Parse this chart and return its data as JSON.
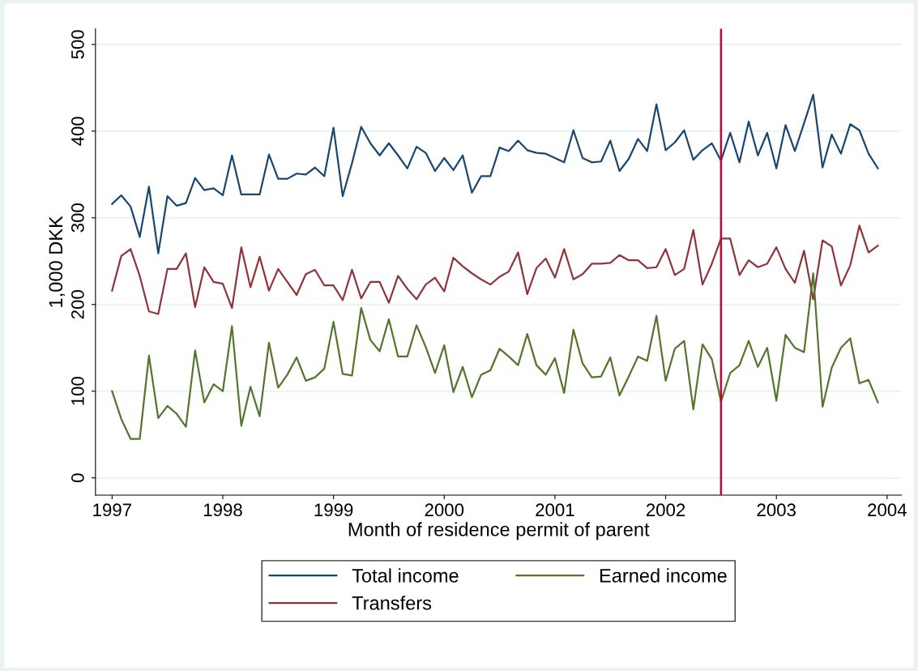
{
  "chart_data": {
    "type": "line",
    "xlabel": "Month of residence permit of parent",
    "ylabel": "1,000 DKK",
    "x": [
      1997.0,
      1997.083,
      1997.167,
      1997.25,
      1997.333,
      1997.417,
      1997.5,
      1997.583,
      1997.667,
      1997.75,
      1997.833,
      1997.917,
      1998.0,
      1998.083,
      1998.167,
      1998.25,
      1998.333,
      1998.417,
      1998.5,
      1998.583,
      1998.667,
      1998.75,
      1998.833,
      1998.917,
      1999.0,
      1999.083,
      1999.167,
      1999.25,
      1999.333,
      1999.417,
      1999.5,
      1999.583,
      1999.667,
      1999.75,
      1999.833,
      1999.917,
      2000.0,
      2000.083,
      2000.167,
      2000.25,
      2000.333,
      2000.417,
      2000.5,
      2000.583,
      2000.667,
      2000.75,
      2000.833,
      2000.917,
      2001.0,
      2001.083,
      2001.167,
      2001.25,
      2001.333,
      2001.417,
      2001.5,
      2001.583,
      2001.667,
      2001.75,
      2001.833,
      2001.917,
      2002.0,
      2002.083,
      2002.167,
      2002.25,
      2002.333,
      2002.417,
      2002.5,
      2002.583,
      2002.667,
      2002.75,
      2002.833,
      2002.917,
      2003.0,
      2003.083,
      2003.167,
      2003.25,
      2003.333,
      2003.417,
      2003.5,
      2003.583,
      2003.667,
      2003.75,
      2003.833,
      2003.917
    ],
    "series": [
      {
        "name": "Total income",
        "color": "#1a476f",
        "values": [
          316,
          326,
          313,
          278,
          336,
          259,
          325,
          314,
          317,
          346,
          332,
          334,
          326,
          372,
          327,
          327,
          327,
          373,
          345,
          345,
          351,
          350,
          358,
          348,
          404,
          325,
          363,
          405,
          386,
          372,
          386,
          372,
          357,
          382,
          375,
          354,
          369,
          355,
          372,
          329,
          348,
          348,
          381,
          377,
          389,
          378,
          375,
          374,
          369,
          364,
          401,
          369,
          364,
          365,
          389,
          354,
          368,
          391,
          377,
          431,
          378,
          387,
          401,
          367,
          378,
          386,
          366,
          398,
          364,
          411,
          372,
          398,
          357,
          407,
          377,
          409,
          442,
          358,
          396,
          374,
          408,
          401,
          374,
          357
        ]
      },
      {
        "name": "Transfers",
        "color": "#90353b",
        "values": [
          216,
          256,
          264,
          233,
          192,
          189,
          241,
          241,
          259,
          197,
          243,
          226,
          224,
          196,
          266,
          220,
          255,
          216,
          241,
          226,
          211,
          235,
          240,
          222,
          222,
          205,
          240,
          207,
          226,
          226,
          202,
          233,
          218,
          206,
          223,
          231,
          215,
          254,
          244,
          236,
          229,
          223,
          232,
          238,
          260,
          212,
          242,
          253,
          231,
          264,
          229,
          235,
          247,
          247,
          248,
          257,
          251,
          251,
          242,
          243,
          264,
          234,
          241,
          286,
          223,
          247,
          276,
          276,
          234,
          251,
          243,
          247,
          266,
          241,
          225,
          262,
          206,
          274,
          267,
          222,
          245,
          291,
          260,
          268
        ]
      },
      {
        "name": "Earned income",
        "color": "#55752f",
        "values": [
          100,
          68,
          45,
          45,
          141,
          69,
          83,
          74,
          59,
          147,
          87,
          108,
          100,
          175,
          60,
          105,
          71,
          156,
          104,
          119,
          139,
          112,
          116,
          126,
          180,
          120,
          118,
          196,
          159,
          146,
          183,
          140,
          140,
          176,
          151,
          121,
          153,
          99,
          128,
          93,
          119,
          124,
          149,
          140,
          130,
          166,
          130,
          119,
          138,
          98,
          171,
          132,
          116,
          117,
          139,
          95,
          117,
          140,
          135,
          187,
          112,
          149,
          158,
          79,
          154,
          137,
          88,
          121,
          130,
          158,
          128,
          150,
          89,
          165,
          150,
          145,
          236,
          82,
          127,
          150,
          161,
          109,
          113,
          87
        ]
      }
    ],
    "xlim": [
      1996.85,
      2004.13
    ],
    "xticks": [
      1997,
      1998,
      1999,
      2000,
      2001,
      2002,
      2003,
      2004
    ],
    "ylim": [
      -20,
      518
    ],
    "yticks": [
      0,
      100,
      200,
      300,
      400,
      500
    ],
    "ref_lines": [
      {
        "axis": "x",
        "value": 2002.5,
        "color": "#c10534"
      }
    ],
    "grid": "y",
    "legend": "bottom"
  }
}
